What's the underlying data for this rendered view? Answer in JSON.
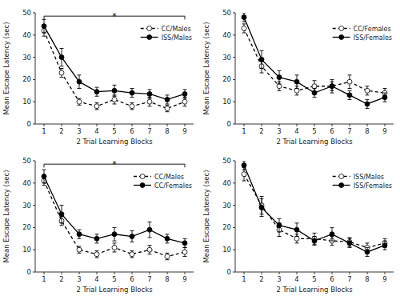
{
  "chart_data": [
    {
      "type": "line",
      "xlabel": "2 Trial Learning Blocks",
      "ylabel": "Mean Escape Latency (sec)",
      "x": [
        1,
        2,
        3,
        4,
        5,
        6,
        7,
        8,
        9
      ],
      "xlim": [
        0.5,
        9.5
      ],
      "xticks": [
        1,
        2,
        3,
        4,
        5,
        6,
        7,
        8,
        9
      ],
      "ylim": [
        0,
        50
      ],
      "yticks": [
        0,
        10,
        20,
        30,
        40,
        50
      ],
      "grid": false,
      "legend": "upper right",
      "series": [
        {
          "name": "CC/Males",
          "color": "black",
          "line_style": "dashed",
          "marker": "open-circle",
          "values": [
            42,
            23,
            10,
            8,
            11,
            8,
            10,
            7,
            10
          ],
          "errors": [
            2.5,
            2,
            1.5,
            1.5,
            2,
            1.5,
            2,
            1.5,
            2
          ]
        },
        {
          "name": "ISS/Males",
          "color": "black",
          "line_style": "solid",
          "marker": "filled-circle",
          "values": [
            44,
            30,
            19,
            14.5,
            15,
            14,
            13.5,
            11,
            13.5
          ],
          "errors": [
            3,
            4,
            3,
            2,
            2.5,
            2,
            2,
            2,
            2
          ]
        }
      ],
      "annotations": [
        {
          "text": "*",
          "x": [
            1,
            9
          ],
          "y": 48.5,
          "drop": 1.5
        }
      ]
    },
    {
      "type": "line",
      "xlabel": "2 Trial Learning Blocks",
      "ylabel": "Mean Escape Latency (sec)",
      "x": [
        1,
        2,
        3,
        4,
        5,
        6,
        7,
        8,
        9
      ],
      "xlim": [
        0.5,
        9.5
      ],
      "xticks": [
        1,
        2,
        3,
        4,
        5,
        6,
        7,
        8,
        9
      ],
      "ylim": [
        0,
        50
      ],
      "yticks": [
        0,
        10,
        20,
        30,
        40,
        50
      ],
      "grid": false,
      "legend": "upper right",
      "series": [
        {
          "name": "CC/Females",
          "color": "black",
          "line_style": "dashed",
          "marker": "open-circle",
          "values": [
            43,
            26,
            17,
            15,
            17,
            17,
            19,
            15,
            14
          ],
          "errors": [
            2,
            3,
            2,
            2,
            2.5,
            2,
            3,
            2,
            2
          ]
        },
        {
          "name": "ISS/Females",
          "color": "black",
          "line_style": "solid",
          "marker": "filled-circle",
          "values": [
            48,
            29,
            21,
            19,
            14,
            17,
            13,
            9,
            12
          ],
          "errors": [
            2,
            4,
            3,
            3,
            2,
            3,
            2,
            2,
            2
          ]
        }
      ]
    },
    {
      "type": "line",
      "xlabel": "2 Trial Learning Blocks",
      "ylabel": "Mean Escape Latency (sec)",
      "x": [
        1,
        2,
        3,
        4,
        5,
        6,
        7,
        8,
        9
      ],
      "xlim": [
        0.5,
        9.5
      ],
      "xticks": [
        1,
        2,
        3,
        4,
        5,
        6,
        7,
        8,
        9
      ],
      "ylim": [
        0,
        50
      ],
      "yticks": [
        0,
        10,
        20,
        30,
        40,
        50
      ],
      "grid": false,
      "legend": "upper right",
      "series": [
        {
          "name": "CC/Males",
          "color": "black",
          "line_style": "dashed",
          "marker": "open-circle",
          "values": [
            41,
            23,
            10,
            8,
            11,
            8,
            10,
            7,
            9
          ],
          "errors": [
            2,
            2,
            1.5,
            1.5,
            2,
            1.5,
            2,
            1.5,
            2
          ]
        },
        {
          "name": "CC/Females",
          "color": "black",
          "line_style": "solid",
          "marker": "filled-circle",
          "values": [
            43,
            26,
            17,
            15,
            17,
            16,
            19,
            15,
            13
          ],
          "errors": [
            3,
            4,
            2,
            2,
            3,
            2.5,
            3.5,
            2,
            2
          ]
        }
      ],
      "annotations": [
        {
          "text": "*",
          "x": [
            1,
            9
          ],
          "y": 48.5,
          "drop": 1.5
        }
      ]
    },
    {
      "type": "line",
      "xlabel": "2 Trial Learning Blocks",
      "ylabel": "Mean Escape Latency (sec)",
      "x": [
        1,
        2,
        3,
        4,
        5,
        6,
        7,
        8,
        9
      ],
      "xlim": [
        0.5,
        9.5
      ],
      "xticks": [
        1,
        2,
        3,
        4,
        5,
        6,
        7,
        8,
        9
      ],
      "ylim": [
        0,
        50
      ],
      "yticks": [
        0,
        10,
        20,
        30,
        40,
        50
      ],
      "grid": false,
      "legend": "upper right",
      "series": [
        {
          "name": "ISS/Males",
          "color": "black",
          "line_style": "dashed",
          "marker": "open-circle",
          "values": [
            44,
            30,
            19,
            15,
            15,
            14,
            13.5,
            11,
            13
          ],
          "errors": [
            3,
            4,
            3,
            2,
            2.5,
            2,
            2,
            2,
            2
          ]
        },
        {
          "name": "ISS/Females",
          "color": "black",
          "line_style": "solid",
          "marker": "filled-circle",
          "values": [
            48,
            29,
            21,
            19,
            14,
            17,
            13,
            9,
            12
          ],
          "errors": [
            2,
            4,
            3,
            3,
            2,
            3,
            2,
            2,
            2
          ]
        }
      ]
    }
  ]
}
